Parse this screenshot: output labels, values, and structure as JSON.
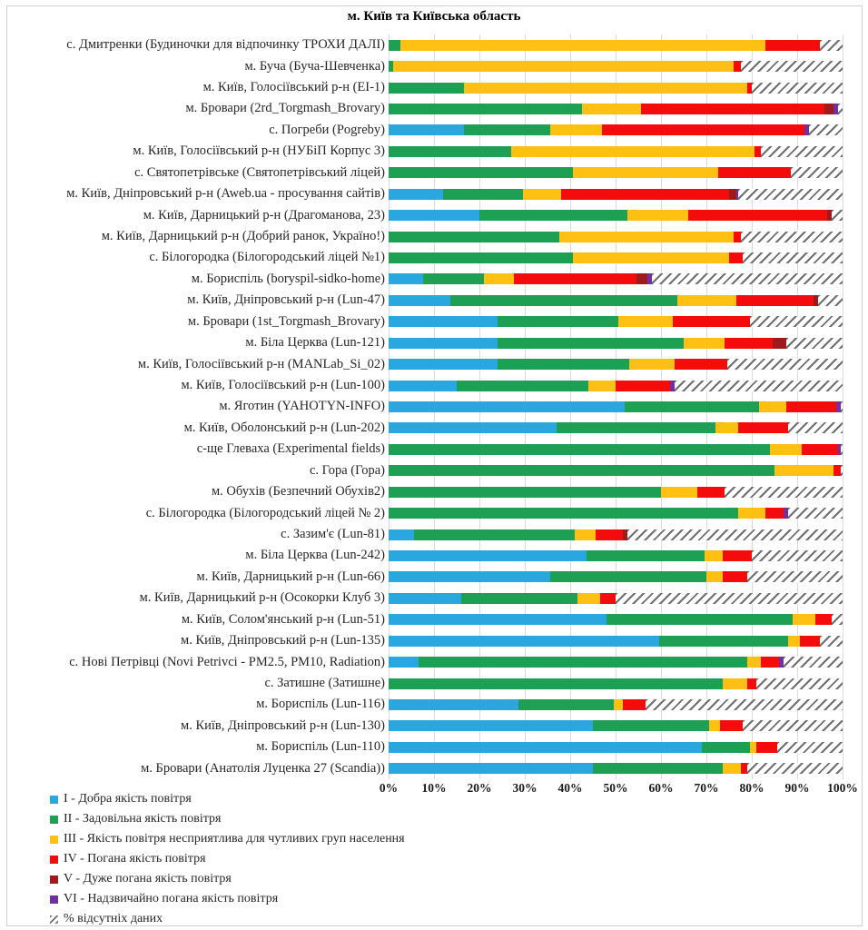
{
  "title": "м. Київ та Київська область",
  "chart_data": {
    "type": "bar",
    "stacked": true,
    "orientation": "horizontal",
    "value_unit": "percent",
    "xlim": [
      0,
      100
    ],
    "grid": true,
    "legend_position": "bottom-left",
    "x_ticks": [
      "0%",
      "10%",
      "20%",
      "30%",
      "40%",
      "50%",
      "60%",
      "70%",
      "80%",
      "90%",
      "100%"
    ],
    "series_keys": [
      "I",
      "II",
      "III",
      "IV",
      "V",
      "VI",
      "missing"
    ],
    "series_colors": {
      "I": "#2aa7df",
      "II": "#1da053",
      "III": "#fdc013",
      "IV": "#f40b0b",
      "V": "#9e1a1c",
      "VI": "#7030a0",
      "missing": "hatch"
    },
    "legend": [
      {
        "key": "I",
        "label": "I - Добра якість повітря"
      },
      {
        "key": "II",
        "label": "II - Задовільна якість повітря"
      },
      {
        "key": "III",
        "label": "III - Якість повітря несприятлива для чутливих груп населення"
      },
      {
        "key": "IV",
        "label": "IV - Погана якість повітря"
      },
      {
        "key": "V",
        "label": "V - Дуже погана якість повітря"
      },
      {
        "key": "VI",
        "label": "VI - Надзвичайно погана якість повітря"
      },
      {
        "key": "missing",
        "label": "% відсутніх даних"
      }
    ],
    "categories": [
      "с. Дмитренки (Будиночки для відпочинку ТРОХИ ДАЛІ)",
      "м. Буча (Буча-Шевченка)",
      "м. Київ, Голосіївський р-н (EI-1)",
      "м. Бровари (2rd_Torgmash_Brovary)",
      "с. Погреби (Pogreby)",
      "м. Київ, Голосіївський р-н (НУБіП Корпус 3)",
      "с. Святопетрівське (Святопетрівський ліцей)",
      "м. Київ, Дніпровський р-н (Aweb.ua - просування сайтів)",
      "м. Київ, Дарницький р-н (Драгоманова, 23)",
      "м. Київ, Дарницький р-н (Добрий ранок, Україно!)",
      "с. Білогородка (Білогородський ліцей №1)",
      "м. Бориспіль (boryspil-sidko-home)",
      "м. Київ, Дніпровський р-н (Lun-47)",
      "м. Бровари (1st_Torgmash_Brovary)",
      "м. Біла Церква (Lun-121)",
      "м. Київ, Голосіївський р-н (MANLab_Si_02)",
      "м. Київ, Голосіївський р-н (Lun-100)",
      "м. Яготин (YAHOTYN-INFO)",
      "м. Київ, Оболонський р-н (Lun-202)",
      "с-ще Глеваха (Experimental  fields)",
      "с. Гора (Гора)",
      "м. Обухів (Безпечний Обухів2)",
      "с. Білогородка (Білогородський ліцей № 2)",
      "с. Зазим'є (Lun-81)",
      "м. Біла Церква (Lun-242)",
      "м. Київ, Дарницький р-н (Lun-66)",
      "м. Київ, Дарницький р-н (Осокорки Клуб 3)",
      "м. Київ, Солом'янський р-н (Lun-51)",
      "м. Київ, Дніпровський р-н (Lun-135)",
      "с. Нові Петрівці (Novi Petrivci - PM2.5, PM10, Radiation)",
      "с. Затишне (Затишне)",
      "м. Бориспіль (Lun-116)",
      "м. Київ, Дніпровський р-н (Lun-130)",
      "м. Бориспіль (Lun-110)",
      "м. Бровари (Анатолія Луценка 27 (Scandia))"
    ],
    "values": [
      [
        0,
        2.5,
        80.5,
        12,
        0,
        0,
        5
      ],
      [
        0,
        1,
        75,
        1.5,
        0,
        0,
        22.5
      ],
      [
        0,
        16.5,
        62.5,
        1,
        0,
        0,
        20
      ],
      [
        0,
        42.5,
        13,
        40.5,
        2,
        1,
        1
      ],
      [
        16.5,
        19,
        11.5,
        44.5,
        0,
        1,
        7.5
      ],
      [
        0,
        27,
        53.5,
        1.5,
        0,
        0,
        18
      ],
      [
        0,
        40.5,
        32,
        16,
        0,
        0,
        11.5
      ],
      [
        12,
        17.5,
        8.5,
        37,
        1.5,
        0.5,
        23
      ],
      [
        20,
        32.5,
        13.5,
        30.5,
        1,
        0,
        2.5
      ],
      [
        0,
        37.5,
        38.5,
        1.5,
        0,
        0,
        22.5
      ],
      [
        0,
        40.5,
        34.5,
        3,
        0,
        0,
        22
      ],
      [
        7.5,
        13.5,
        6.5,
        27,
        2.5,
        1,
        42
      ],
      [
        13.5,
        50,
        13,
        17,
        1,
        0,
        5.5
      ],
      [
        24,
        26.5,
        12,
        17,
        0,
        0,
        20.5
      ],
      [
        24,
        41,
        9,
        10.5,
        3,
        0,
        12.5
      ],
      [
        24,
        29,
        10,
        11.5,
        0,
        0,
        25.5
      ],
      [
        15,
        29,
        6,
        12,
        0,
        1,
        37
      ],
      [
        52,
        29.5,
        6,
        11,
        0,
        1,
        0.5
      ],
      [
        37,
        35,
        5,
        11,
        0,
        0,
        12
      ],
      [
        0,
        84,
        7,
        8,
        0,
        0.5,
        0.5
      ],
      [
        0,
        85,
        13,
        1.5,
        0,
        0,
        0.5
      ],
      [
        0,
        60,
        8,
        6,
        0,
        0,
        26
      ],
      [
        0,
        77,
        6,
        4,
        0,
        1,
        12
      ],
      [
        5.5,
        35.5,
        4.5,
        6,
        1,
        0,
        47.5
      ],
      [
        43.5,
        26,
        4,
        6.5,
        0,
        0,
        20
      ],
      [
        35.5,
        34.5,
        3.5,
        5.5,
        0,
        0,
        21
      ],
      [
        16,
        25.5,
        5,
        3.5,
        0,
        0,
        50
      ],
      [
        48,
        41,
        5,
        3.5,
        0,
        0,
        2.5
      ],
      [
        59.5,
        28.5,
        2.5,
        4.5,
        0,
        0,
        5
      ],
      [
        6.5,
        72.5,
        3,
        4,
        0,
        1,
        13
      ],
      [
        0,
        73.5,
        5.5,
        2,
        0,
        0,
        19
      ],
      [
        28.5,
        21,
        2,
        5,
        0,
        0,
        43.5
      ],
      [
        45,
        25.5,
        2.5,
        5,
        0,
        0,
        22
      ],
      [
        69,
        10.5,
        1.5,
        4.5,
        0,
        0,
        14.5
      ],
      [
        45,
        28.5,
        4,
        1.5,
        0,
        0,
        21
      ]
    ]
  }
}
